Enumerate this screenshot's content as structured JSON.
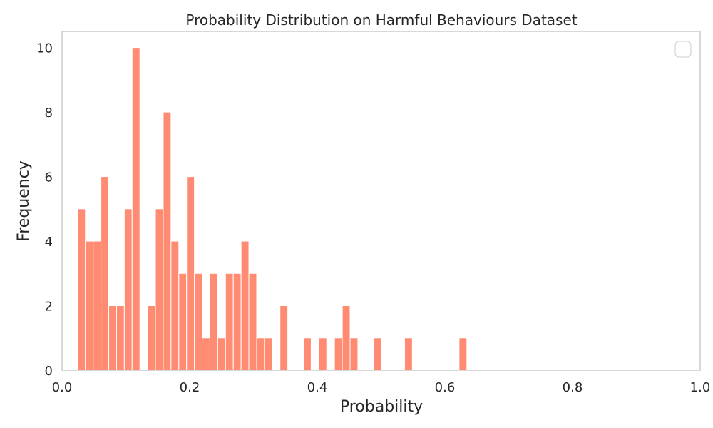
{
  "chart_data": {
    "type": "bar",
    "title": "Probability Distribution on Harmful Behaviours Dataset",
    "xlabel": "Probability",
    "ylabel": "Frequency",
    "xlim": [
      0,
      1
    ],
    "ylim": [
      0,
      10.5
    ],
    "grid": false,
    "legend": "top-right (empty)",
    "bar_color": "#ff8c72",
    "bar_edge_color": "#ffffff",
    "axis_color": "#cccccc",
    "text_color": "#262626",
    "bin_width": 0.0122,
    "x_ticks": [
      0,
      0.2,
      0.4,
      0.6,
      0.8,
      1
    ],
    "x_tick_labels": [
      "0.0",
      "0.2",
      "0.4",
      "0.6",
      "0.8",
      "1.0"
    ],
    "y_ticks": [
      0,
      2,
      4,
      6,
      8,
      10
    ],
    "y_tick_labels": [
      "0",
      "2",
      "4",
      "6",
      "8",
      "10"
    ],
    "x": [
      0.0244,
      0.0366,
      0.0488,
      0.061,
      0.0732,
      0.0854,
      0.0976,
      0.1098,
      0.1342,
      0.1464,
      0.1586,
      0.1708,
      0.183,
      0.1952,
      0.2074,
      0.2196,
      0.2318,
      0.244,
      0.2562,
      0.2684,
      0.2806,
      0.2928,
      0.305,
      0.3172,
      0.3416,
      0.3782,
      0.4026,
      0.427,
      0.4392,
      0.4514,
      0.488,
      0.5368,
      0.6222
    ],
    "values": [
      5,
      4,
      4,
      6,
      2,
      2,
      5,
      10,
      2,
      5,
      8,
      4,
      3,
      6,
      3,
      1,
      3,
      1,
      3,
      3,
      4,
      3,
      1,
      1,
      2,
      1,
      1,
      1,
      2,
      1,
      1,
      1,
      1
    ]
  }
}
